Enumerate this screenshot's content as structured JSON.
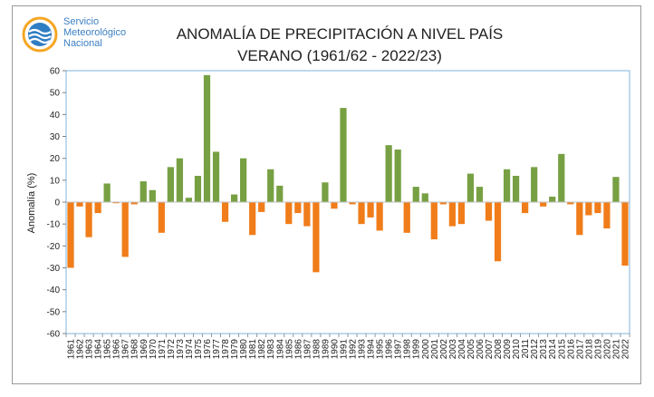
{
  "header": {
    "org_line1": "Servicio",
    "org_line2": "Meteorológico",
    "org_line3": "Nacional",
    "title_line1": "ANOMALÍA DE PRECIPITACIÓN A NIVEL PAÍS",
    "title_line2": "VERANO (1961/62 - 2022/23)"
  },
  "colors": {
    "positive": "#77a043",
    "negative": "#f07d1a",
    "logo_blue": "#2f7dc3",
    "logo_orange": "#f5a623"
  },
  "chart_data": {
    "type": "bar",
    "title": "ANOMALÍA DE PRECIPITACIÓN A NIVEL PAÍS",
    "subtitle": "VERANO (1961/62 - 2022/23)",
    "xlabel": "",
    "ylabel": "Anomalía (%)",
    "ylim": [
      -60,
      60
    ],
    "yticks": [
      60,
      50,
      40,
      30,
      20,
      10,
      0,
      -10,
      -20,
      -30,
      -40,
      -50,
      -60
    ],
    "grid": false,
    "categories": [
      "1961",
      "1962",
      "1963",
      "1964",
      "1965",
      "1966",
      "1967",
      "1968",
      "1969",
      "1970",
      "1971",
      "1972",
      "1973",
      "1974",
      "1975",
      "1976",
      "1977",
      "1978",
      "1979",
      "1980",
      "1981",
      "1982",
      "1983",
      "1984",
      "1985",
      "1986",
      "1987",
      "1988",
      "1989",
      "1990",
      "1991",
      "1992",
      "1993",
      "1994",
      "1995",
      "1996",
      "1997",
      "1998",
      "1999",
      "2000",
      "2001",
      "2002",
      "2003",
      "2004",
      "2005",
      "2006",
      "2007",
      "2008",
      "2009",
      "2010",
      "2011",
      "2012",
      "2013",
      "2014",
      "2015",
      "2016",
      "2017",
      "2018",
      "2019",
      "2020",
      "2021",
      "2022"
    ],
    "values": [
      -30,
      -2,
      -16,
      -5,
      8.5,
      -0.5,
      -25,
      -1,
      9.5,
      5.5,
      -14,
      16,
      20,
      2,
      12,
      58,
      23,
      -9,
      3.5,
      20,
      -15,
      -4.5,
      15,
      7.5,
      -10,
      -5,
      -11,
      -32,
      9,
      -3,
      43,
      -1,
      -10,
      -7,
      -13,
      26,
      24,
      -14,
      7,
      4,
      -17,
      -1,
      -11,
      -10,
      13,
      7,
      -8.5,
      -27,
      15,
      12,
      -5,
      16,
      -2,
      2.5,
      22,
      -1,
      -15,
      -6,
      -5,
      -12,
      11.5,
      -29
    ]
  }
}
